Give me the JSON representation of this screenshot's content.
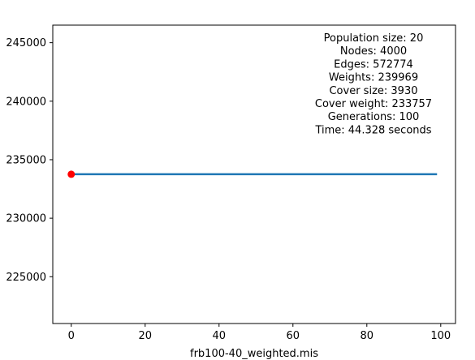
{
  "chart_data": {
    "type": "line",
    "xlabel": "frb100-40_weighted.mis",
    "ylabel": "",
    "xlim": [
      -5,
      104
    ],
    "ylim": [
      221000,
      246500
    ],
    "x_ticks": [
      0,
      20,
      40,
      60,
      80,
      100
    ],
    "y_ticks": [
      225000,
      230000,
      235000,
      240000,
      245000
    ],
    "series": [
      {
        "x": [
          0,
          99
        ],
        "values": [
          233757,
          233757
        ],
        "color": "#1f77b4"
      }
    ],
    "marker": {
      "x": 0,
      "y": 233757,
      "color": "#ff0000"
    },
    "annotation": [
      "Population size: 20",
      "Nodes: 4000",
      "Edges: 572774",
      "Weights: 239969",
      "Cover size: 3930",
      "Cover weight: 233757",
      "Generations: 100",
      "Time: 44.328 seconds"
    ],
    "grid": false
  }
}
